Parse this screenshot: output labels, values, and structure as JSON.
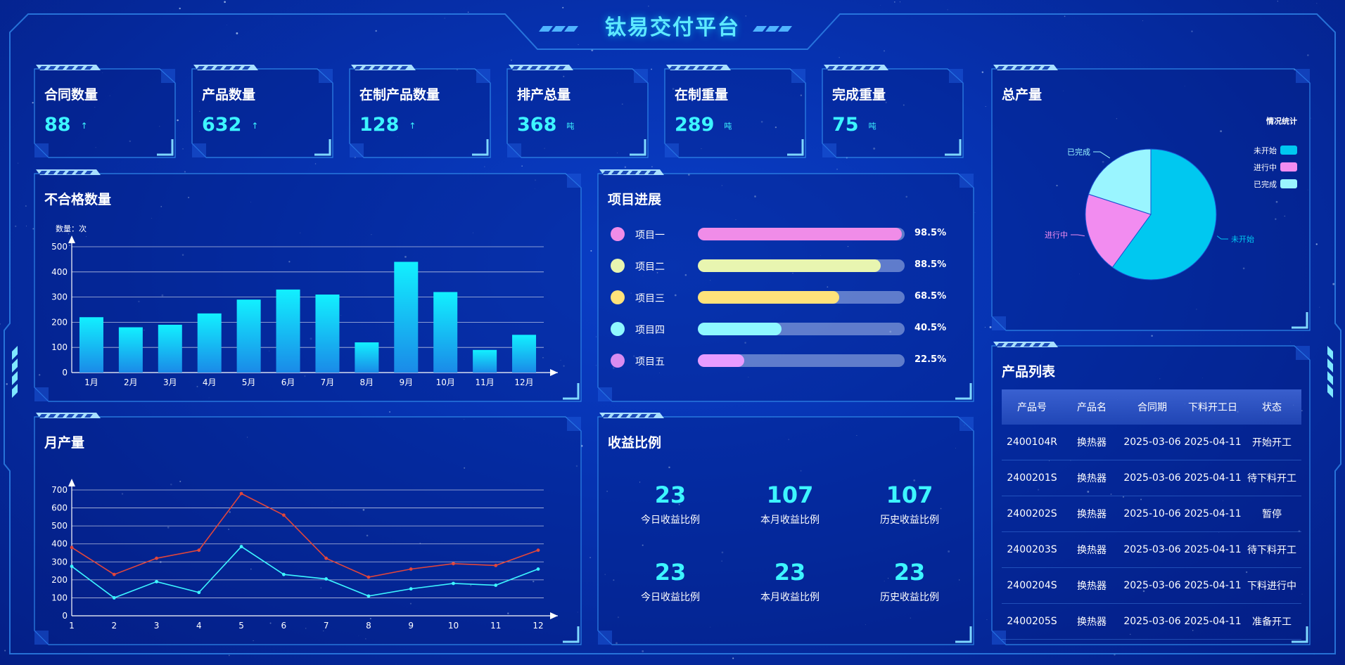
{
  "header": {
    "title": "钛易交付平台"
  },
  "stats": [
    {
      "label": "合同数量",
      "value": "88",
      "suffix": "↑"
    },
    {
      "label": "产品数量",
      "value": "632",
      "suffix": "↑"
    },
    {
      "label": "在制产品数量",
      "value": "128",
      "suffix": "↑"
    },
    {
      "label": "排产总量",
      "value": "368",
      "suffix": "吨"
    },
    {
      "label": "在制重量",
      "value": "289",
      "suffix": "吨"
    },
    {
      "label": "完成重量",
      "value": "75",
      "suffix": "吨"
    }
  ],
  "defects": {
    "title": "不合格数量",
    "chart_data": {
      "type": "bar",
      "ylabel": "数量：次",
      "ylim": [
        0,
        500
      ],
      "yticks": [
        "0",
        "100",
        "200",
        "300",
        "400",
        "500"
      ],
      "categories": [
        "1月",
        "2月",
        "3月",
        "4月",
        "5月",
        "6月",
        "7月",
        "8月",
        "9月",
        "10月",
        "11月",
        "12月"
      ],
      "values": [
        220,
        180,
        190,
        235,
        290,
        330,
        310,
        120,
        440,
        320,
        90,
        150
      ],
      "grid": true
    }
  },
  "monthly": {
    "title": "月产量",
    "chart_data": {
      "type": "line",
      "x": [
        "1",
        "2",
        "3",
        "4",
        "5",
        "6",
        "7",
        "8",
        "9",
        "10",
        "11",
        "12"
      ],
      "ylim": [
        0,
        700
      ],
      "yticks": [
        "0",
        "100",
        "200",
        "300",
        "400",
        "500",
        "600",
        "700"
      ],
      "series": [
        {
          "values": [
            380,
            230,
            320,
            365,
            680,
            560,
            320,
            215,
            260,
            290,
            280,
            365
          ],
          "color": "#e0463c"
        },
        {
          "values": [
            275,
            100,
            190,
            130,
            385,
            230,
            205,
            110,
            150,
            180,
            170,
            260
          ],
          "color": "#3df5ff"
        }
      ],
      "grid": true
    }
  },
  "progress": {
    "title": "项目进展",
    "items": [
      {
        "name": "项目一",
        "pct": 98.5,
        "pct_label": "98.5%",
        "color": "#f08ce8",
        "dot": "#f08ce8"
      },
      {
        "name": "项目二",
        "pct": 88.5,
        "pct_label": "88.5%",
        "color": "#e8f5b0",
        "dot": "#e8f5b0"
      },
      {
        "name": "项目三",
        "pct": 68.5,
        "pct_label": "68.5%",
        "color": "#ffe27a",
        "dot": "#ffe27a"
      },
      {
        "name": "项目四",
        "pct": 40.5,
        "pct_label": "40.5%",
        "color": "#8ef8ff",
        "dot": "#8ef8ff"
      },
      {
        "name": "项目五",
        "pct": 22.5,
        "pct_label": "22.5%",
        "color": "#e79bff",
        "dot": "#d88cf0"
      }
    ]
  },
  "revenue": {
    "title": "收益比例",
    "cells": [
      {
        "value": "23",
        "label": "今日收益比例"
      },
      {
        "value": "107",
        "label": "本月收益比例"
      },
      {
        "value": "107",
        "label": "历史收益比例"
      },
      {
        "value": "23",
        "label": "今日收益比例"
      },
      {
        "value": "23",
        "label": "本月收益比例"
      },
      {
        "value": "23",
        "label": "历史收益比例"
      }
    ]
  },
  "total": {
    "title": "总产量",
    "chart_data": {
      "type": "pie",
      "legend_title": "情况统计",
      "legend_placement": "top-right",
      "slices": [
        {
          "name": "未开始",
          "value": 60,
          "color": "#00c8f0"
        },
        {
          "name": "进行中",
          "value": 20,
          "color": "#f28cf0"
        },
        {
          "name": "已完成",
          "value": 20,
          "color": "#9af5ff"
        }
      ]
    }
  },
  "products": {
    "title": "产品列表",
    "columns": [
      "产品号",
      "产品名",
      "合同期",
      "下料开工日",
      "状态"
    ],
    "rows": [
      [
        "2400104R",
        "换热器",
        "2025-03-06",
        "2025-04-11",
        "开始开工"
      ],
      [
        "2400201S",
        "换热器",
        "2025-03-06",
        "2025-04-11",
        "待下料开工"
      ],
      [
        "2400202S",
        "换热器",
        "2025-10-06",
        "2025-04-11",
        "暂停"
      ],
      [
        "2400203S",
        "换热器",
        "2025-03-06",
        "2025-04-11",
        "待下料开工"
      ],
      [
        "2400204S",
        "换热器",
        "2025-03-06",
        "2025-04-11",
        "下料进行中"
      ],
      [
        "2400205S",
        "换热器",
        "2025-03-06",
        "2025-04-11",
        "准备开工"
      ]
    ]
  },
  "colors": {
    "accent": "#3df5ff",
    "border": "#2f86e8",
    "background": "#0632b0"
  }
}
